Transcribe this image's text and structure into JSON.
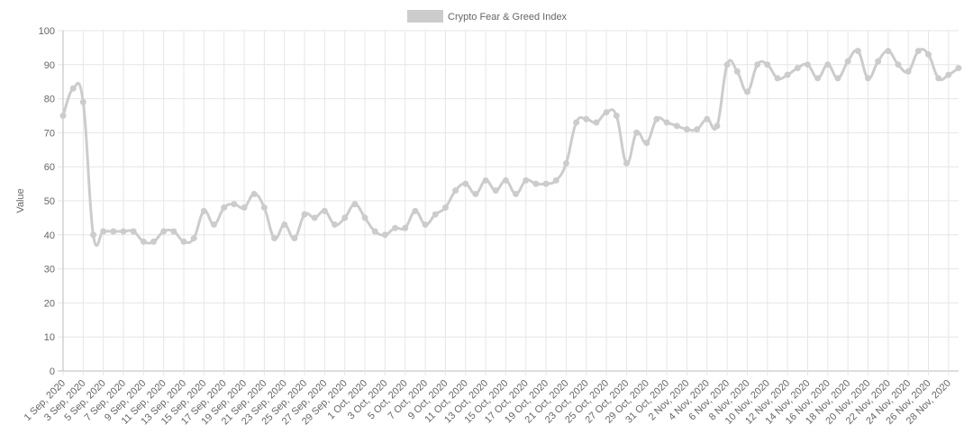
{
  "chart_data": {
    "type": "line",
    "title": "",
    "xlabel": "",
    "ylabel": "Value",
    "ylim": [
      0,
      100
    ],
    "yticks": [
      0,
      10,
      20,
      30,
      40,
      50,
      60,
      70,
      80,
      90,
      100
    ],
    "grid": true,
    "legend_position": "top-center",
    "series": [
      {
        "name": "Crypto Fear & Greed Index",
        "color": "#cccccc",
        "values": [
          75,
          83,
          79,
          40,
          41,
          41,
          41,
          41,
          38,
          38,
          41,
          41,
          38,
          39,
          47,
          43,
          48,
          49,
          48,
          52,
          48,
          39,
          43,
          39,
          46,
          45,
          47,
          43,
          45,
          49,
          45,
          41,
          40,
          42,
          42,
          47,
          43,
          46,
          48,
          53,
          55,
          52,
          56,
          53,
          56,
          52,
          56,
          55,
          55,
          56,
          61,
          73,
          74,
          73,
          76,
          75,
          61,
          70,
          67,
          74,
          73,
          72,
          71,
          71,
          74,
          72,
          90,
          88,
          82,
          90,
          90,
          86,
          87,
          89,
          90,
          86,
          90,
          86,
          91,
          94,
          86,
          91,
          94,
          90,
          88,
          94,
          93,
          86,
          87,
          89
        ]
      }
    ],
    "x_tick_labels": [
      "1 Sep, 2020",
      "3 Sep, 2020",
      "5 Sep, 2020",
      "7 Sep, 2020",
      "9 Sep, 2020",
      "11 Sep, 2020",
      "13 Sep, 2020",
      "15 Sep, 2020",
      "17 Sep, 2020",
      "19 Sep, 2020",
      "21 Sep, 2020",
      "23 Sep, 2020",
      "25 Sep, 2020",
      "27 Sep, 2020",
      "29 Sep, 2020",
      "1 Oct, 2020",
      "3 Oct, 2020",
      "5 Oct, 2020",
      "7 Oct, 2020",
      "9 Oct, 2020",
      "11 Oct, 2020",
      "13 Oct, 2020",
      "15 Oct, 2020",
      "17 Oct, 2020",
      "19 Oct, 2020",
      "21 Oct, 2020",
      "23 Oct, 2020",
      "25 Oct, 2020",
      "27 Oct, 2020",
      "29 Oct, 2020",
      "31 Oct, 2020",
      "2 Nov, 2020",
      "4 Nov, 2020",
      "6 Nov, 2020",
      "8 Nov, 2020",
      "10 Nov, 2020",
      "12 Nov, 2020",
      "14 Nov, 2020",
      "16 Nov, 2020",
      "18 Nov, 2020",
      "20 Nov, 2020",
      "22 Nov, 2020",
      "24 Nov, 2020",
      "26 Nov, 2020",
      "28 Nov, 2020"
    ]
  }
}
